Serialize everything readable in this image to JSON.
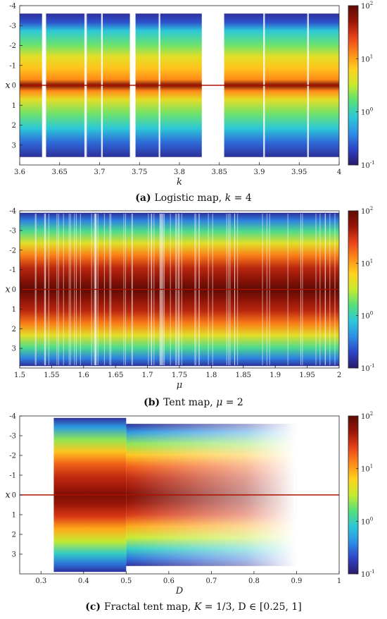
{
  "chart_data": [
    {
      "type": "heatmap",
      "panel": "(a)",
      "caption": "Logistic map, k = 4",
      "caption_parts": {
        "bold": "(a)",
        "text": "Logistic map, ",
        "ital": "k",
        "rest": " = 4"
      },
      "xlabel": "k",
      "ylabel": "x",
      "xlim": [
        3.6,
        4.0
      ],
      "ylim": [
        -4,
        4
      ],
      "y_inverted": true,
      "xticks": [
        "3.6",
        "3.65",
        "3.7",
        "3.75",
        "3.8",
        "3.85",
        "3.9",
        "3.95",
        "4"
      ],
      "yticks": [
        "-4",
        "-3",
        "-2",
        "-1",
        "0",
        "1",
        "2",
        "3"
      ],
      "colorbar": {
        "scale": "log",
        "ticks": [
          "10^-1",
          "10^0",
          "10^1",
          "10^2"
        ],
        "range": [
          0.1,
          100
        ]
      },
      "gaps_x": [
        [
          3.628,
          3.633
        ],
        [
          3.738,
          3.745
        ],
        [
          3.828,
          3.856
        ]
      ]
    },
    {
      "type": "heatmap",
      "panel": "(b)",
      "caption": "Tent map, μ = 2",
      "caption_parts": {
        "bold": "(b)",
        "text": "Tent map, ",
        "ital": "μ",
        "rest": " = 2"
      },
      "xlabel": "μ",
      "ylabel": "x",
      "xlim": [
        1.5,
        2.0
      ],
      "ylim": [
        -4,
        4
      ],
      "y_inverted": true,
      "xticks": [
        "1.5",
        "1.55",
        "1.6",
        "1.65",
        "1.7",
        "1.75",
        "1.8",
        "1.85",
        "1.9",
        "1.95",
        "2"
      ],
      "yticks": [
        "-4",
        "-3",
        "-2",
        "-1",
        "0",
        "1",
        "2",
        "3"
      ],
      "colorbar": {
        "scale": "log",
        "ticks": [
          "10^-1",
          "10^0",
          "10^1",
          "10^2"
        ],
        "range": [
          0.1,
          100
        ]
      }
    },
    {
      "type": "heatmap",
      "panel": "(c)",
      "caption": "Fractal tent map, K = 1/3, D ∈ [0.25, 1]",
      "caption_parts": {
        "bold": "(c)",
        "text": "Fractal tent map, ",
        "ital": "K",
        "rest": " = 1/3, D ∈ [0.25, 1]"
      },
      "xlabel": "D",
      "ylabel": "x",
      "xlim": [
        0.25,
        1.0
      ],
      "ylim": [
        -4,
        4
      ],
      "y_inverted": true,
      "xticks": [
        "0.3",
        "0.4",
        "0.5",
        "0.6",
        "0.7",
        "0.8",
        "0.9",
        "1"
      ],
      "yticks": [
        "-4",
        "-3",
        "-2",
        "-1",
        "0",
        "1",
        "2",
        "3"
      ],
      "colorbar": {
        "scale": "log",
        "ticks": [
          "10^-1",
          "10^0",
          "10^1",
          "10^2"
        ],
        "range": [
          0.1,
          100
        ]
      }
    }
  ],
  "colors": {
    "colormap": [
      "#2b1a6b",
      "#2e43c8",
      "#2d8fe6",
      "#2cc8d8",
      "#55e07a",
      "#c6ea2f",
      "#ffd21e",
      "#ff8a18",
      "#e8421a",
      "#9a1508",
      "#5e0b04"
    ],
    "axis": "#222222",
    "zero_line": "#b01000"
  }
}
